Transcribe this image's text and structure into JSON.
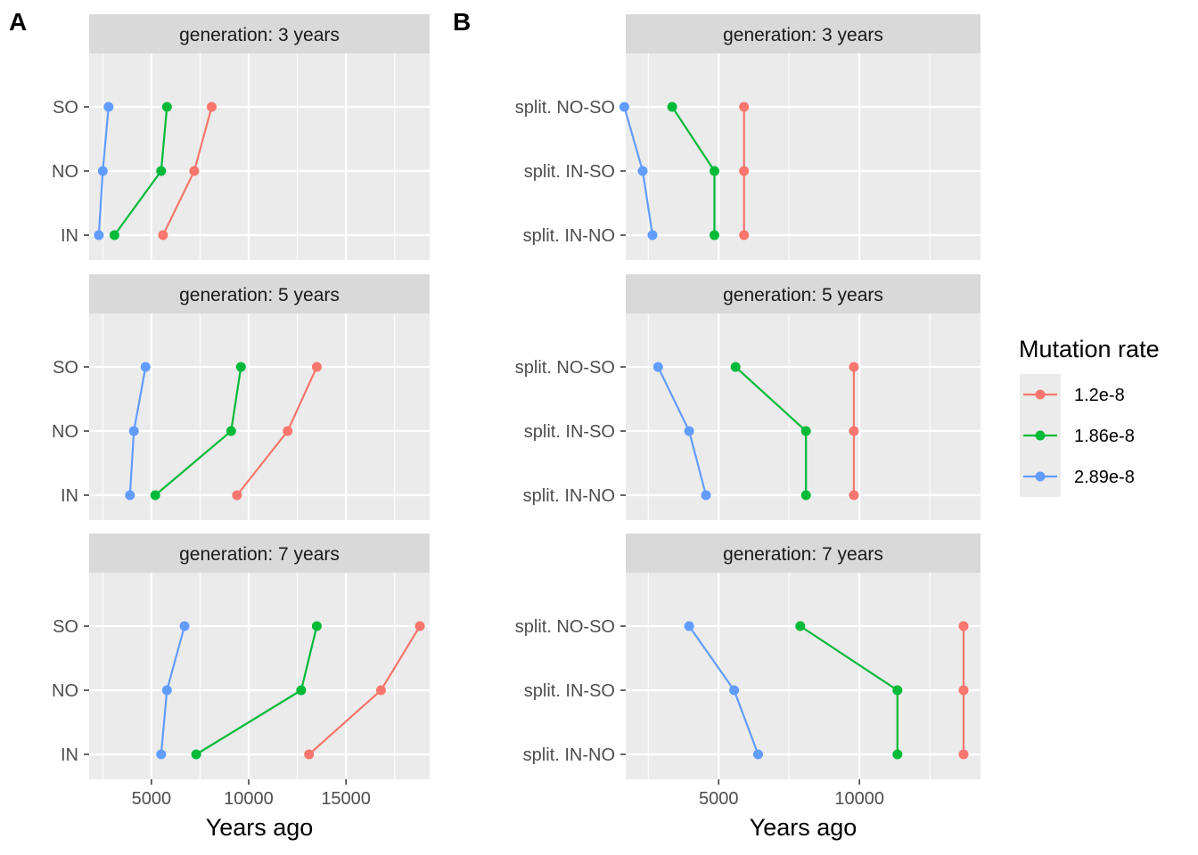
{
  "legend": {
    "title": "Mutation rate",
    "entries": [
      "1.2e-8",
      "1.86e-8",
      "2.89e-8"
    ],
    "colors": [
      "#F8766D",
      "#00BA38",
      "#619CFF"
    ]
  },
  "chart_data": [
    {
      "label": "A",
      "type": "line",
      "xlabel": "Years ago",
      "xlim": [
        1800,
        19300
      ],
      "xticks": [
        5000,
        10000,
        15000
      ],
      "xtick_labels": [
        "5000",
        "10000",
        "15000"
      ],
      "categories": [
        "IN",
        "NO",
        "SO"
      ],
      "facets": [
        {
          "strip": "generation: 3 years",
          "series": [
            {
              "name": "1.2e-8",
              "values": [
                5600,
                7200,
                8100
              ]
            },
            {
              "name": "1.86e-8",
              "values": [
                3100,
                5500,
                5800
              ]
            },
            {
              "name": "2.89e-8",
              "values": [
                2300,
                2500,
                2800
              ]
            }
          ]
        },
        {
          "strip": "generation: 5 years",
          "series": [
            {
              "name": "1.2e-8",
              "values": [
                9400,
                12000,
                13500
              ]
            },
            {
              "name": "1.86e-8",
              "values": [
                5200,
                9100,
                9600
              ]
            },
            {
              "name": "2.89e-8",
              "values": [
                3900,
                4100,
                4700
              ]
            }
          ]
        },
        {
          "strip": "generation: 7 years",
          "series": [
            {
              "name": "1.2e-8",
              "values": [
                13100,
                16800,
                18800
              ]
            },
            {
              "name": "1.86e-8",
              "values": [
                7300,
                12700,
                13500
              ]
            },
            {
              "name": "2.89e-8",
              "values": [
                5500,
                5800,
                6700
              ]
            }
          ]
        }
      ]
    },
    {
      "label": "B",
      "type": "line",
      "xlabel": "Years ago",
      "xlim": [
        1700,
        14300
      ],
      "xticks": [
        5000,
        10000
      ],
      "xtick_labels": [
        "5000",
        "10000"
      ],
      "categories": [
        "split. IN-NO",
        "split. IN-SO",
        "split. NO-SO"
      ],
      "facets": [
        {
          "strip": "generation: 3 years",
          "series": [
            {
              "name": "1.2e-8",
              "values": [
                5900,
                5900,
                5900
              ]
            },
            {
              "name": "1.86e-8",
              "values": [
                4850,
                4850,
                3350
              ]
            },
            {
              "name": "2.89e-8",
              "values": [
                2650,
                2300,
                1650
              ]
            }
          ]
        },
        {
          "strip": "generation: 5 years",
          "series": [
            {
              "name": "1.2e-8",
              "values": [
                9800,
                9800,
                9800
              ]
            },
            {
              "name": "1.86e-8",
              "values": [
                8100,
                8100,
                5600
              ]
            },
            {
              "name": "2.89e-8",
              "values": [
                4550,
                3950,
                2850
              ]
            }
          ]
        },
        {
          "strip": "generation: 7 years",
          "series": [
            {
              "name": "1.2e-8",
              "values": [
                13700,
                13700,
                13700
              ]
            },
            {
              "name": "1.86e-8",
              "values": [
                11350,
                11350,
                7900
              ]
            },
            {
              "name": "2.89e-8",
              "values": [
                6400,
                5550,
                3950
              ]
            }
          ]
        }
      ]
    }
  ]
}
